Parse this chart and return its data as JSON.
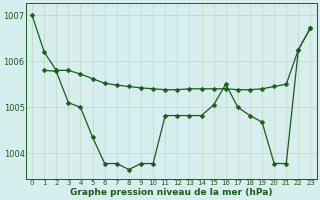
{
  "line_a": {
    "x": [
      0,
      1,
      2,
      3,
      4,
      5,
      6,
      7,
      8,
      9,
      10,
      11,
      12,
      13,
      14,
      15,
      16,
      17,
      18,
      19,
      20,
      21,
      22,
      23
    ],
    "y": [
      1007.0,
      1006.2,
      1005.8,
      1005.8,
      1005.72,
      1005.62,
      1005.52,
      1005.48,
      1005.45,
      1005.42,
      1005.4,
      1005.38,
      1005.38,
      1005.4,
      1005.4,
      1005.4,
      1005.4,
      1005.38,
      1005.38,
      1005.4,
      1005.45,
      1005.5,
      1006.25,
      1006.72
    ]
  },
  "line_b": {
    "x": [
      1,
      2,
      3,
      4,
      5,
      6,
      7,
      8,
      9,
      10,
      11,
      12,
      13,
      14,
      15,
      16,
      17,
      18,
      19,
      20,
      21,
      22,
      23
    ],
    "y": [
      1005.8,
      1005.78,
      1005.1,
      1005.0,
      1004.35,
      1003.78,
      1003.78,
      1003.65,
      1003.78,
      1003.78,
      1004.82,
      1004.82,
      1004.82,
      1004.82,
      1005.05,
      1005.5,
      1005.0,
      1004.82,
      1004.68,
      1003.78,
      1003.78,
      1006.25,
      1006.72
    ]
  },
  "bg_color": "#d6eeee",
  "line_color": "#1a5c1a",
  "grid_color_h": "#c8d8c8",
  "grid_color_v": "#c8d8c8",
  "xlabel": "Graphe pression niveau de la mer (hPa)",
  "ylim": [
    1003.45,
    1007.25
  ],
  "yticks": [
    1004,
    1005,
    1006,
    1007
  ],
  "ytick_labels": [
    "1004",
    "1005",
    "1006",
    "1007"
  ],
  "xticks": [
    0,
    1,
    2,
    3,
    4,
    5,
    6,
    7,
    8,
    9,
    10,
    11,
    12,
    13,
    14,
    15,
    16,
    17,
    18,
    19,
    20,
    21,
    22,
    23
  ],
  "marker_size": 2.5,
  "lw": 0.9
}
